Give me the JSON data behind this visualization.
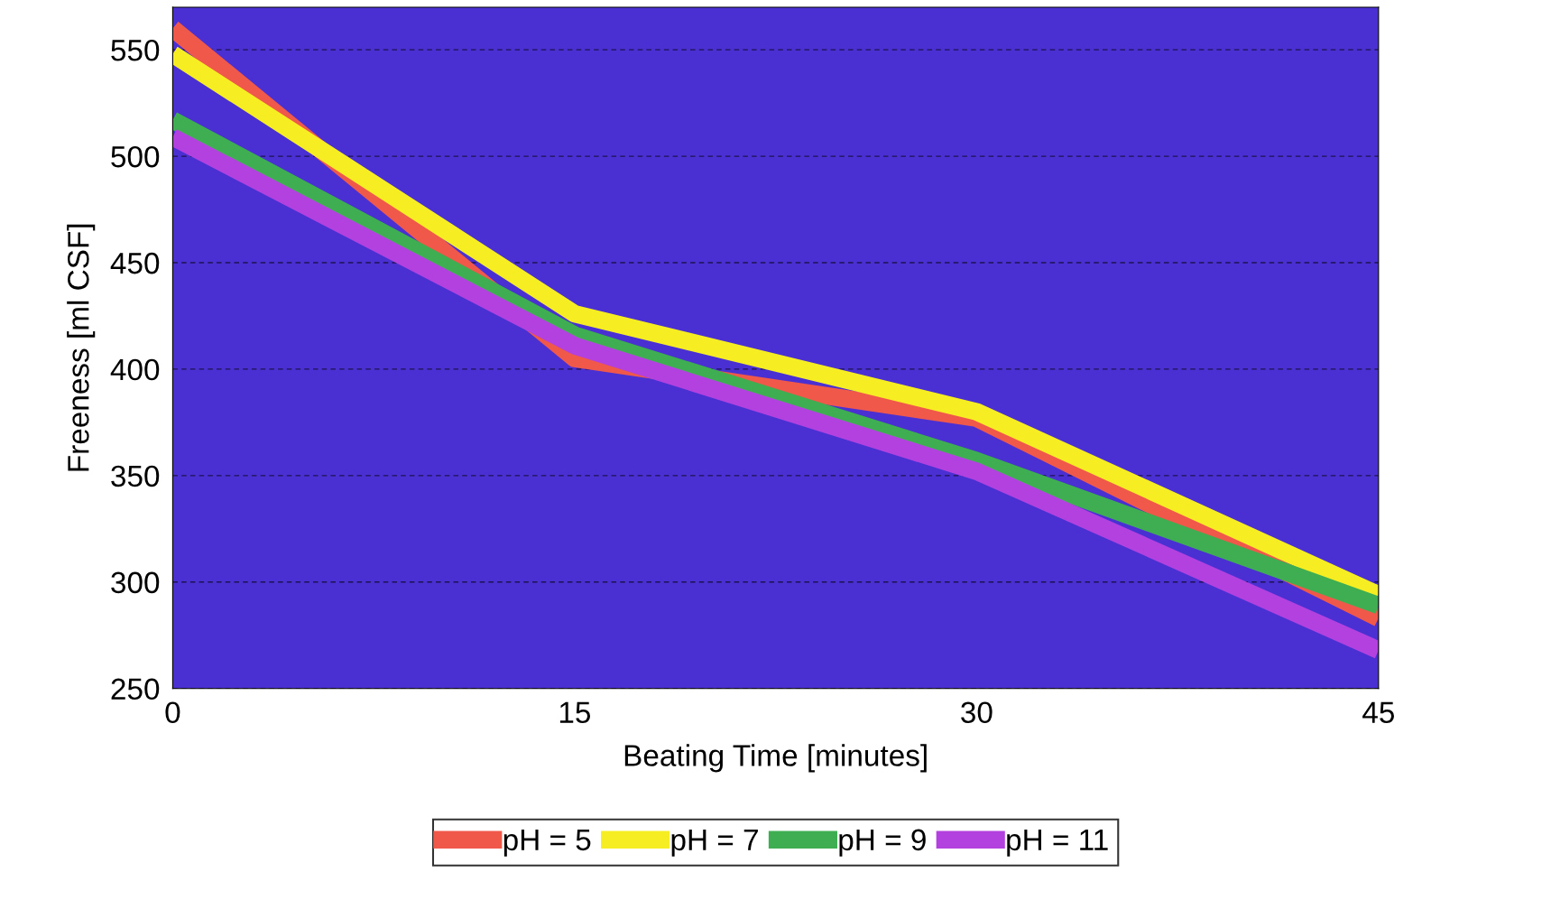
{
  "chart_data": {
    "type": "line",
    "xlabel": "Beating Time [minutes]",
    "ylabel": "Freeness [ml CSF]",
    "x": [
      0,
      15,
      30,
      45
    ],
    "series": [
      {
        "name": "pH = 5",
        "color": "#f0584a",
        "values": [
          560,
          405,
          377,
          283
        ]
      },
      {
        "name": "pH = 7",
        "color": "#f6ee22",
        "values": [
          548,
          426,
          380,
          294
        ]
      },
      {
        "name": "pH = 9",
        "color": "#3fae52",
        "values": [
          517,
          416,
          357,
          289
        ]
      },
      {
        "name": "pH = 11",
        "color": "#b241e0",
        "values": [
          509,
          411,
          352,
          268
        ]
      }
    ],
    "xlim": [
      0,
      45
    ],
    "xticks": [
      0,
      15,
      30,
      45
    ],
    "ylim": [
      250,
      570
    ],
    "yticks": [
      250,
      300,
      350,
      400,
      450,
      500,
      550
    ],
    "grid": "y",
    "legend": "bottom",
    "marker": "none",
    "line_style": "solid"
  }
}
